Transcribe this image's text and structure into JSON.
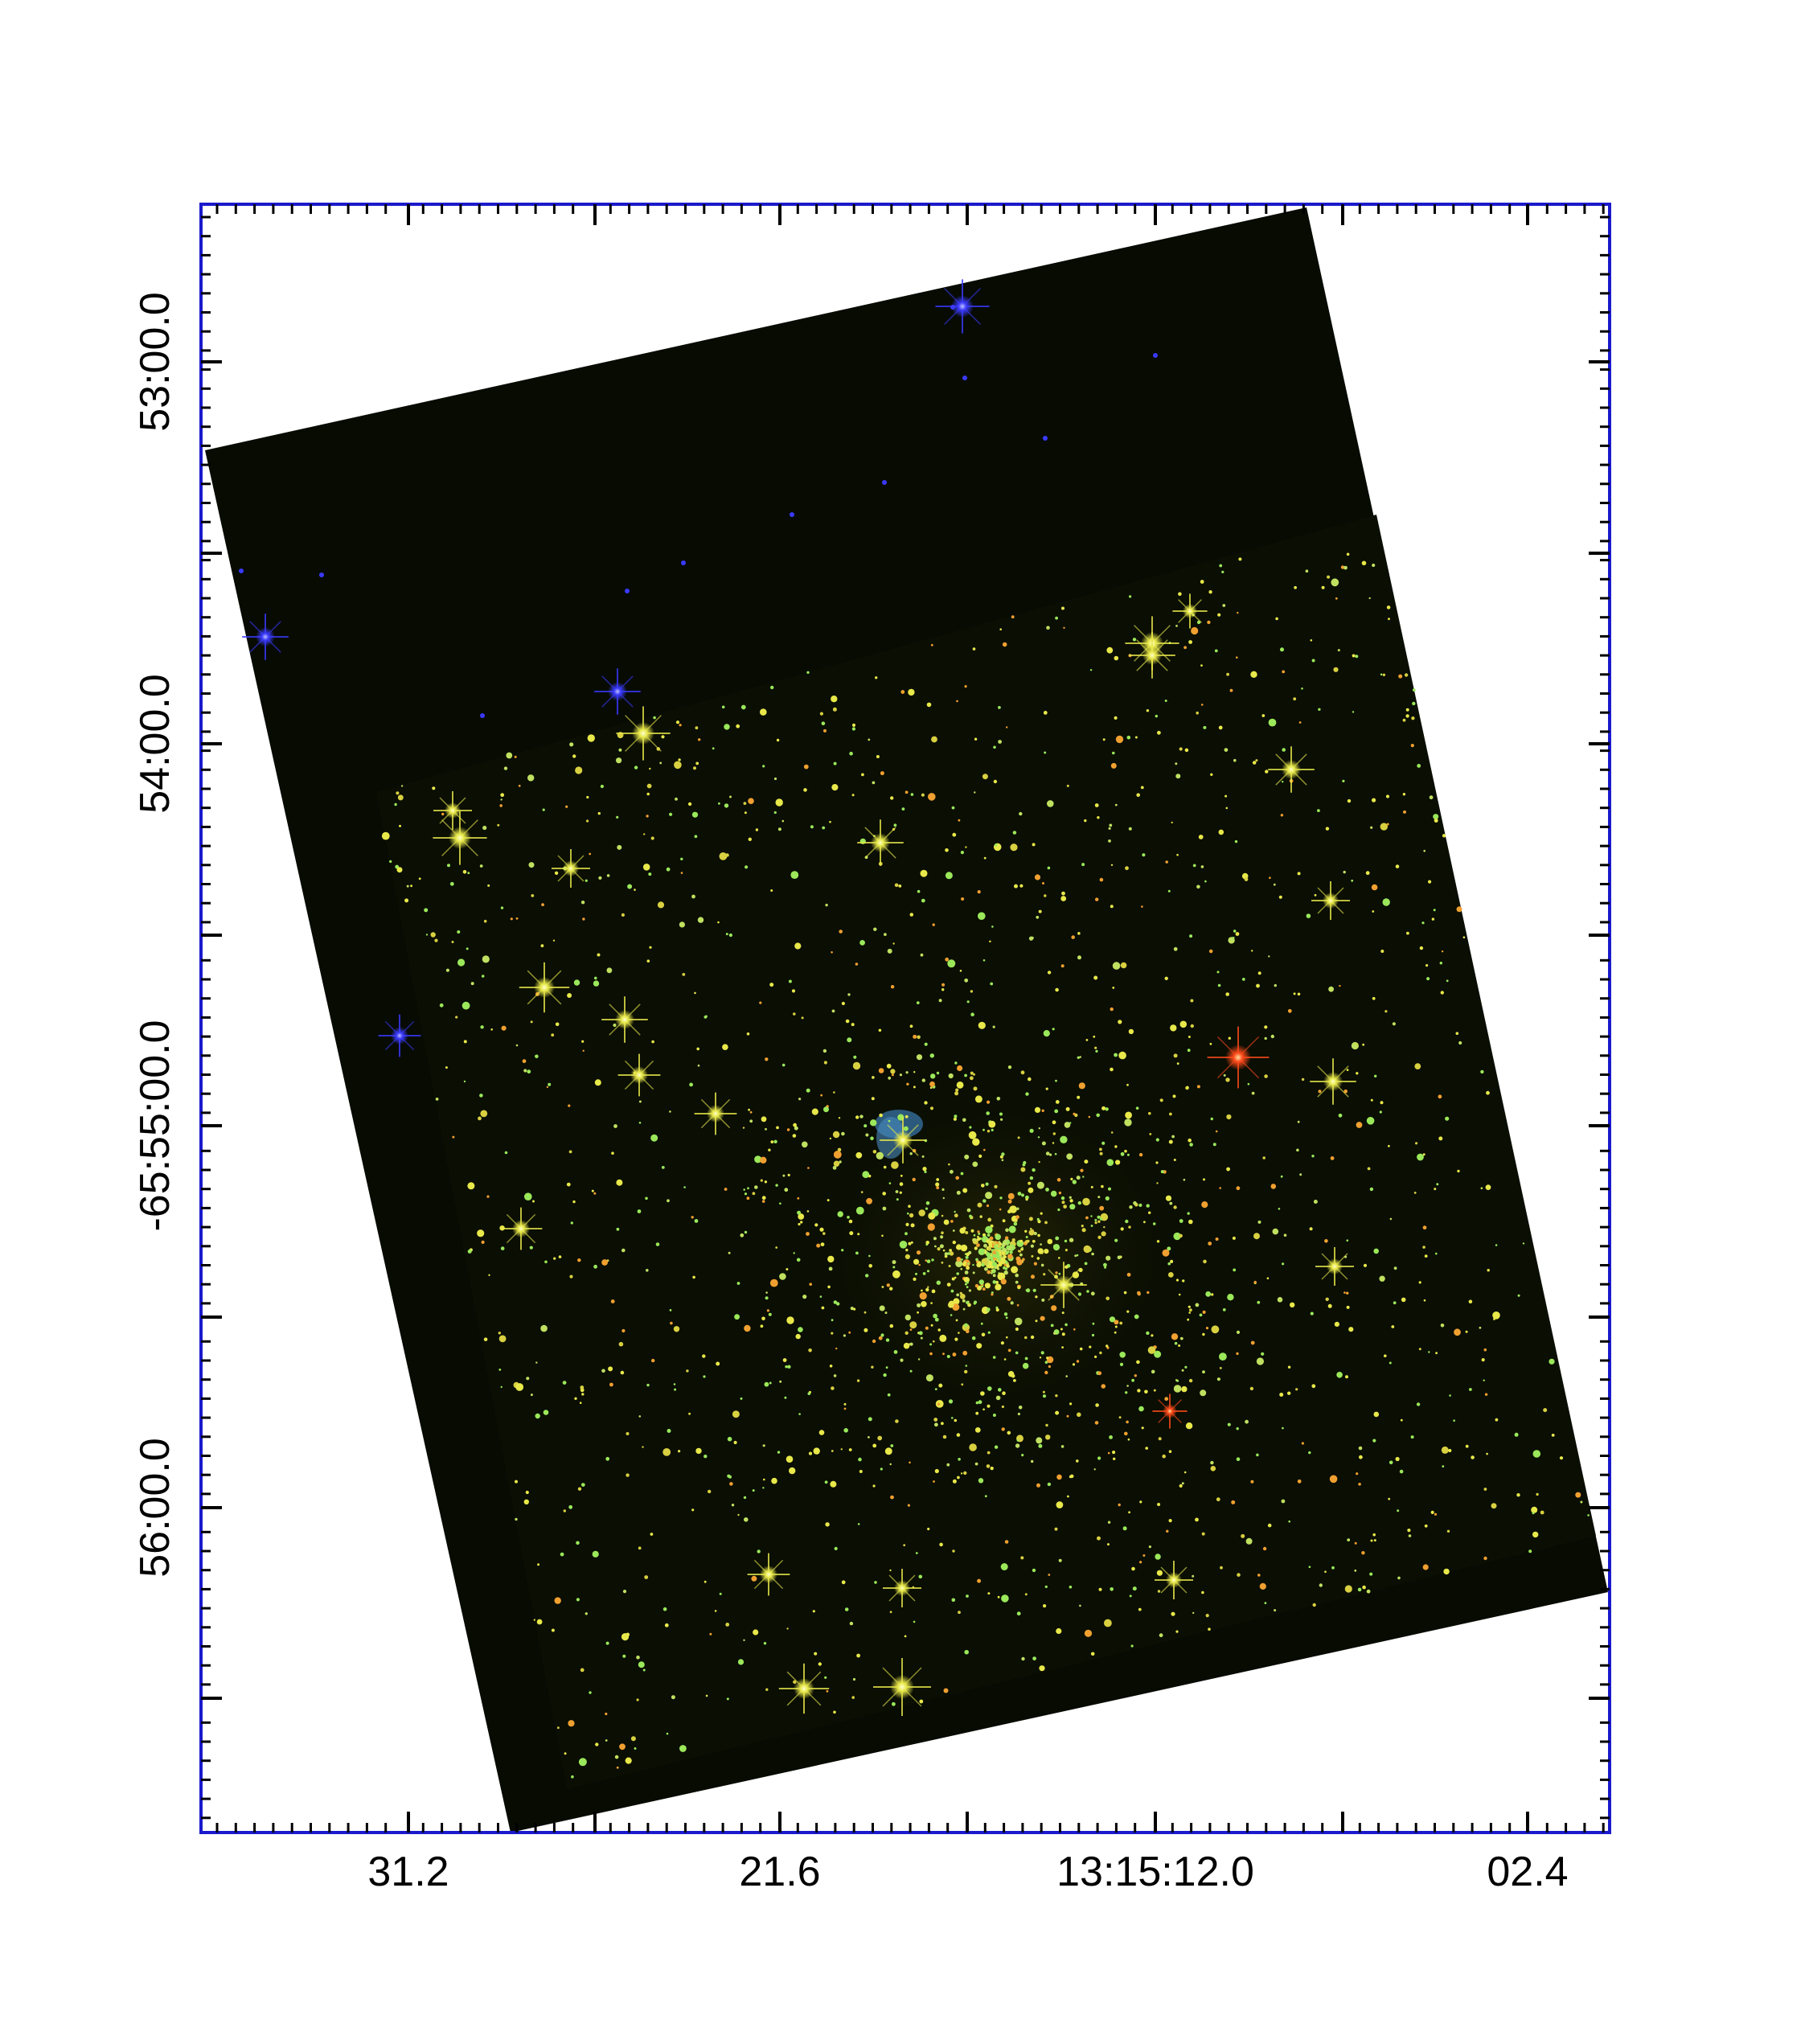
{
  "figure": {
    "x_ticks": [
      {
        "label": "31.2",
        "value": 31.2
      },
      {
        "label": "21.6",
        "value": 21.6
      },
      {
        "label": "13:15:12.0",
        "value": 12.0
      },
      {
        "label": "02.4",
        "value": 2.4
      }
    ],
    "y_ticks": [
      {
        "label": "53:00.0",
        "value": -65.8833
      },
      {
        "label": "54:00.0",
        "value": -65.9
      },
      {
        "label": "-65:55:00.0",
        "value": -65.9167
      },
      {
        "label": "56:00.0",
        "value": -65.9333
      }
    ],
    "colors": {
      "frame": "#1a1acc",
      "background": "#070b02",
      "star_yellow": "#e8e84a",
      "star_green": "#9be85a",
      "star_orange": "#f0a030",
      "star_red": "#ff4a1a",
      "star_blue": "#3a3aff",
      "nebula": "#3a7ab0"
    }
  }
}
